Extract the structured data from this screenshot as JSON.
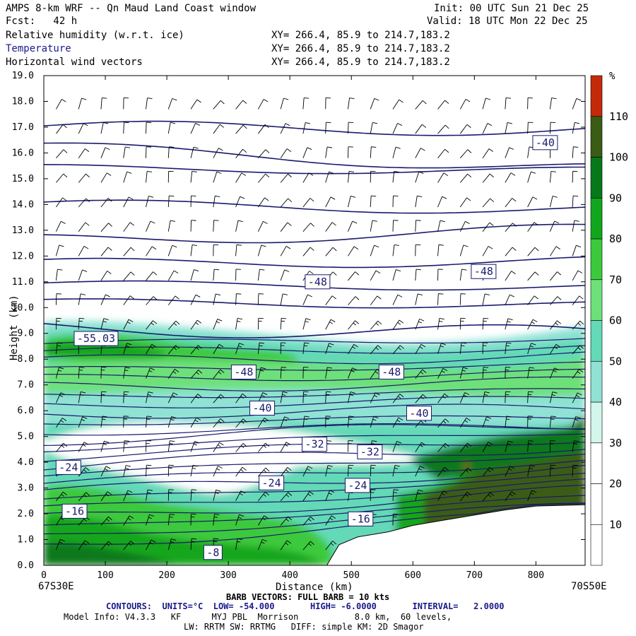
{
  "header": {
    "title": "AMPS 8-km WRF -- Qn Maud Land Coast window",
    "forecast": "Fcst:   42 h",
    "init": "Init: 00 UTC Sun 21 Dec 25",
    "valid": "Valid: 18 UTC Mon 22 Dec 25",
    "fields": [
      {
        "name": "Relative humidity (w.r.t. ice)",
        "xy": "XY= 266.4, 85.9 to 214.7,183.2"
      },
      {
        "name": "Temperature",
        "xy": "XY= 266.4, 85.9 to 214.7,183.2"
      },
      {
        "name": "Horizontal wind vectors",
        "xy": "XY= 266.4, 85.9 to 214.7,183.2"
      }
    ]
  },
  "chart_data": {
    "type": "heatmap",
    "xlabel": "Distance (km)",
    "ylabel": "Height (km)",
    "xlim": [
      0,
      880
    ],
    "ylim": [
      0,
      19
    ],
    "x_ticks": [
      0,
      100,
      200,
      300,
      400,
      500,
      600,
      700,
      800
    ],
    "y_ticks": [
      "0.0",
      "1.0",
      "2.0",
      "3.0",
      "4.0",
      "5.0",
      "6.0",
      "7.0",
      "8.0",
      "9.0",
      "10.0",
      "11.0",
      "12.0",
      "13.0",
      "14.0",
      "15.0",
      "16.0",
      "17.0",
      "18.0",
      "19.0"
    ],
    "x_start_label": "67S30E",
    "x_end_label": "70S50E",
    "colorbar": {
      "unit": "%",
      "ticks": [
        10,
        20,
        30,
        40,
        50,
        60,
        70,
        80,
        90,
        100,
        110
      ],
      "colors": [
        "#ffffff",
        "#ffffff",
        "#ffffff",
        "#d2f5ec",
        "#8fe2d4",
        "#63d9b7",
        "#6ee07a",
        "#3cc93c",
        "#12a61e",
        "#07781a",
        "#3b5c14",
        "#c42a0a"
      ]
    },
    "contour_labels": [
      {
        "text": "-40",
        "x": 815,
        "y": 16.4
      },
      {
        "text": "-48",
        "x": 445,
        "y": 11.0
      },
      {
        "text": "-48",
        "x": 715,
        "y": 11.4
      },
      {
        "text": "-55.03",
        "x": 85,
        "y": 8.8
      },
      {
        "text": "-48",
        "x": 325,
        "y": 7.5
      },
      {
        "text": "-48",
        "x": 565,
        "y": 7.5
      },
      {
        "text": "-40",
        "x": 355,
        "y": 6.1
      },
      {
        "text": "-40",
        "x": 610,
        "y": 5.9
      },
      {
        "text": "-32",
        "x": 440,
        "y": 4.7
      },
      {
        "text": "-32",
        "x": 530,
        "y": 4.4
      },
      {
        "text": "-24",
        "x": 40,
        "y": 3.8
      },
      {
        "text": "-24",
        "x": 370,
        "y": 3.2
      },
      {
        "text": "-24",
        "x": 510,
        "y": 3.1
      },
      {
        "text": "-16",
        "x": 50,
        "y": 2.1
      },
      {
        "text": "-16",
        "x": 515,
        "y": 1.8
      },
      {
        "text": "-8",
        "x": 275,
        "y": 0.5
      }
    ],
    "terrain": [
      {
        "x": 0,
        "y": 0
      },
      {
        "x": 460,
        "y": 0
      },
      {
        "x": 480,
        "y": 0.8
      },
      {
        "x": 510,
        "y": 1.1
      },
      {
        "x": 560,
        "y": 1.3
      },
      {
        "x": 600,
        "y": 1.55
      },
      {
        "x": 650,
        "y": 1.75
      },
      {
        "x": 700,
        "y": 1.95
      },
      {
        "x": 750,
        "y": 2.15
      },
      {
        "x": 800,
        "y": 2.3
      },
      {
        "x": 880,
        "y": 2.35
      }
    ]
  },
  "footer": {
    "barb_info": "BARB VECTORS: FULL BARB = 10 kts",
    "contours": "CONTOURS:  UNITS=°C  LOW= -54.000       HIGH= -6.0000       INTERVAL=   2.0000",
    "model_info": "Model Info: V4.3.3   KF      MYJ PBL  Morrison           8.0 km,  60 levels,",
    "physics": "LW: RRTM SW: RRTMG   DIFF: simple KM: 2D Smagor"
  }
}
